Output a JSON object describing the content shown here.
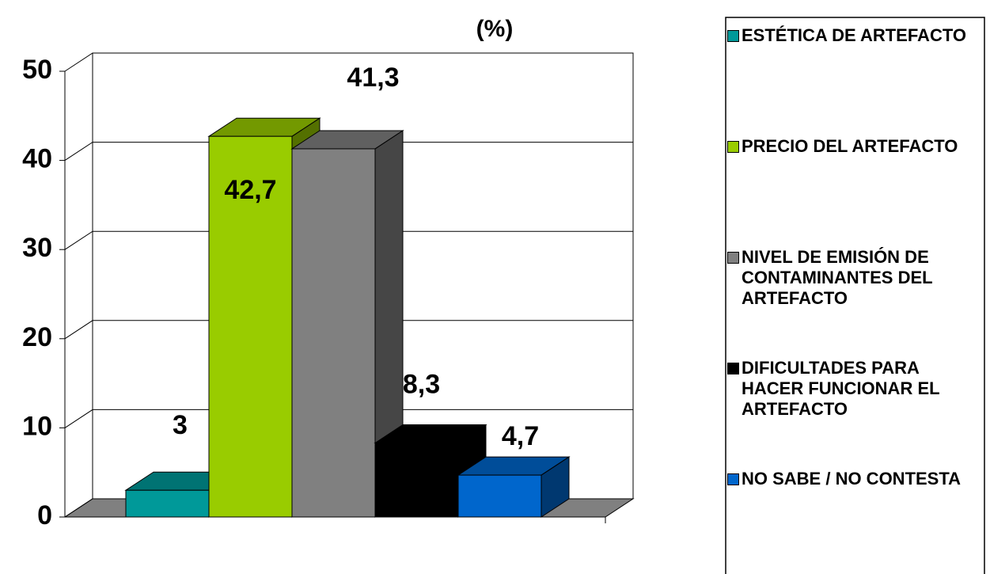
{
  "chart_data": {
    "type": "bar3d",
    "title": "(%)",
    "series": [
      {
        "name": "ESTÉTICA DE ARTEFACTO",
        "color": "#009999",
        "values": [
          3
        ],
        "value_labels": [
          "3"
        ]
      },
      {
        "name": "PRECIO DEL ARTEFACTO",
        "color": "#99cc00",
        "values": [
          42.7
        ],
        "value_labels": [
          "42,7"
        ]
      },
      {
        "name": "NIVEL DE EMISIÓN DE CONTAMINANTES DEL ARTEFACTO",
        "color": "#808080",
        "values": [
          41.3
        ],
        "value_labels": [
          "41,3"
        ]
      },
      {
        "name": "DIFICULTADES PARA HACER FUNCIONAR EL ARTEFACTO",
        "color": "#000000",
        "values": [
          8.3
        ],
        "value_labels": [
          "8,3"
        ]
      },
      {
        "name": "NO SABE / NO CONTESTA",
        "color": "#0066cc",
        "values": [
          4.7
        ],
        "value_labels": [
          "4,7"
        ]
      }
    ],
    "ylim": [
      0,
      50
    ],
    "yticks": [
      0,
      10,
      20,
      30,
      40,
      50
    ],
    "grid": true,
    "legend": "right"
  }
}
